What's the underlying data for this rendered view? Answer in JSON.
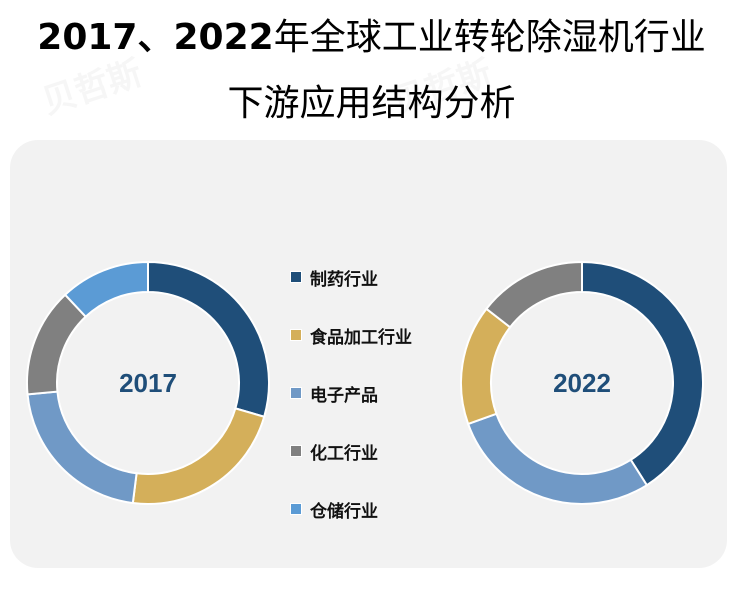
{
  "title": {
    "line1_years": "2017、2022",
    "line1_rest": "年全球工业转轮除湿机行业",
    "line2": "下游应用结构分析"
  },
  "legend": [
    {
      "label": "制药行业",
      "color": "#1f4e79"
    },
    {
      "label": "食品加工行业",
      "color": "#d4af5a"
    },
    {
      "label": "电子产品",
      "color": "#7099c6"
    },
    {
      "label": "化工行业",
      "color": "#808080"
    },
    {
      "label": "仓储行业",
      "color": "#5b9bd5"
    }
  ],
  "donuts": {
    "d2017": {
      "center_label": "2017"
    },
    "d2022": {
      "center_label": "2022"
    }
  },
  "chart_data": [
    {
      "type": "pie",
      "subtype": "donut",
      "title": "2017",
      "categories": [
        "制药行业",
        "食品加工行业",
        "电子产品",
        "化工行业",
        "仓储行业"
      ],
      "values": [
        29.5,
        22.5,
        21.5,
        14.5,
        12.0
      ],
      "unit": "%",
      "colors": [
        "#1f4e79",
        "#d4af5a",
        "#7099c6",
        "#808080",
        "#5b9bd5"
      ]
    },
    {
      "type": "pie",
      "subtype": "donut",
      "title": "2022",
      "categories": [
        "制药行业",
        "电子产品",
        "食品加工行业",
        "化工行业"
      ],
      "values": [
        41.0,
        28.5,
        16.0,
        14.5
      ],
      "unit": "%",
      "colors": [
        "#1f4e79",
        "#7099c6",
        "#d4af5a",
        "#808080"
      ]
    }
  ],
  "chart_meta": {
    "title": "2017、2022年全球工业转轮除湿机行业下游应用结构分析",
    "legend_position": "center",
    "start_angle": "top, clockwise"
  }
}
